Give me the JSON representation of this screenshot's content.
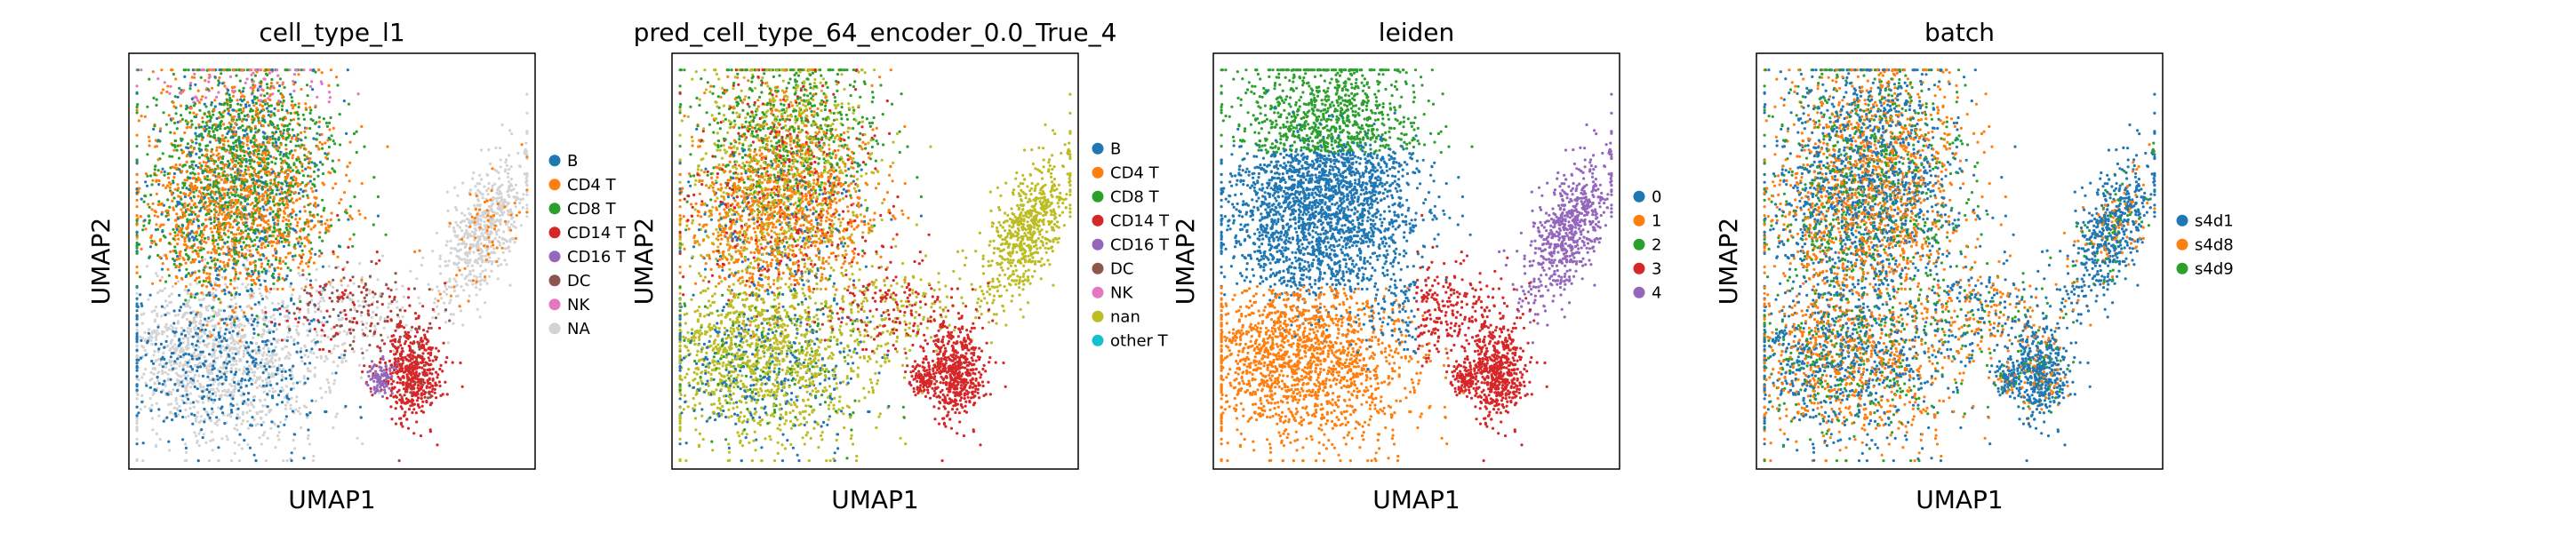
{
  "chart_data": [
    {
      "type": "scatter",
      "title": "cell_type_l1",
      "xlabel": "UMAP1",
      "ylabel": "UMAP2",
      "grid": false,
      "legend_placement": "right",
      "categories": [
        "B",
        "CD4 T",
        "CD8 T",
        "CD14 T",
        "CD16 T",
        "DC",
        "NK",
        "NA"
      ],
      "colors": [
        "#1f77b4",
        "#ff7f0e",
        "#2ca02c",
        "#d62728",
        "#9467bd",
        "#8c564b",
        "#e377c2",
        "#d3d3d3"
      ]
    },
    {
      "type": "scatter",
      "title": "pred_cell_type_64_encoder_0.0_True_4",
      "xlabel": "UMAP1",
      "ylabel": "UMAP2",
      "grid": false,
      "legend_placement": "right",
      "categories": [
        "B",
        "CD4 T",
        "CD8 T",
        "CD14 T",
        "CD16 T",
        "DC",
        "NK",
        "nan",
        "other T"
      ],
      "colors": [
        "#1f77b4",
        "#ff7f0e",
        "#2ca02c",
        "#d62728",
        "#9467bd",
        "#8c564b",
        "#e377c2",
        "#bcbd22",
        "#17becf"
      ]
    },
    {
      "type": "scatter",
      "title": "leiden",
      "xlabel": "UMAP1",
      "ylabel": "UMAP2",
      "grid": false,
      "legend_placement": "right",
      "categories": [
        "0",
        "1",
        "2",
        "3",
        "4"
      ],
      "colors": [
        "#1f77b4",
        "#ff7f0e",
        "#2ca02c",
        "#d62728",
        "#9467bd"
      ]
    },
    {
      "type": "scatter",
      "title": "batch",
      "xlabel": "UMAP1",
      "ylabel": "UMAP2",
      "grid": false,
      "legend_placement": "right",
      "categories": [
        "s4d1",
        "s4d8",
        "s4d9"
      ],
      "colors": [
        "#1f77b4",
        "#ff7f0e",
        "#2ca02c"
      ]
    }
  ]
}
